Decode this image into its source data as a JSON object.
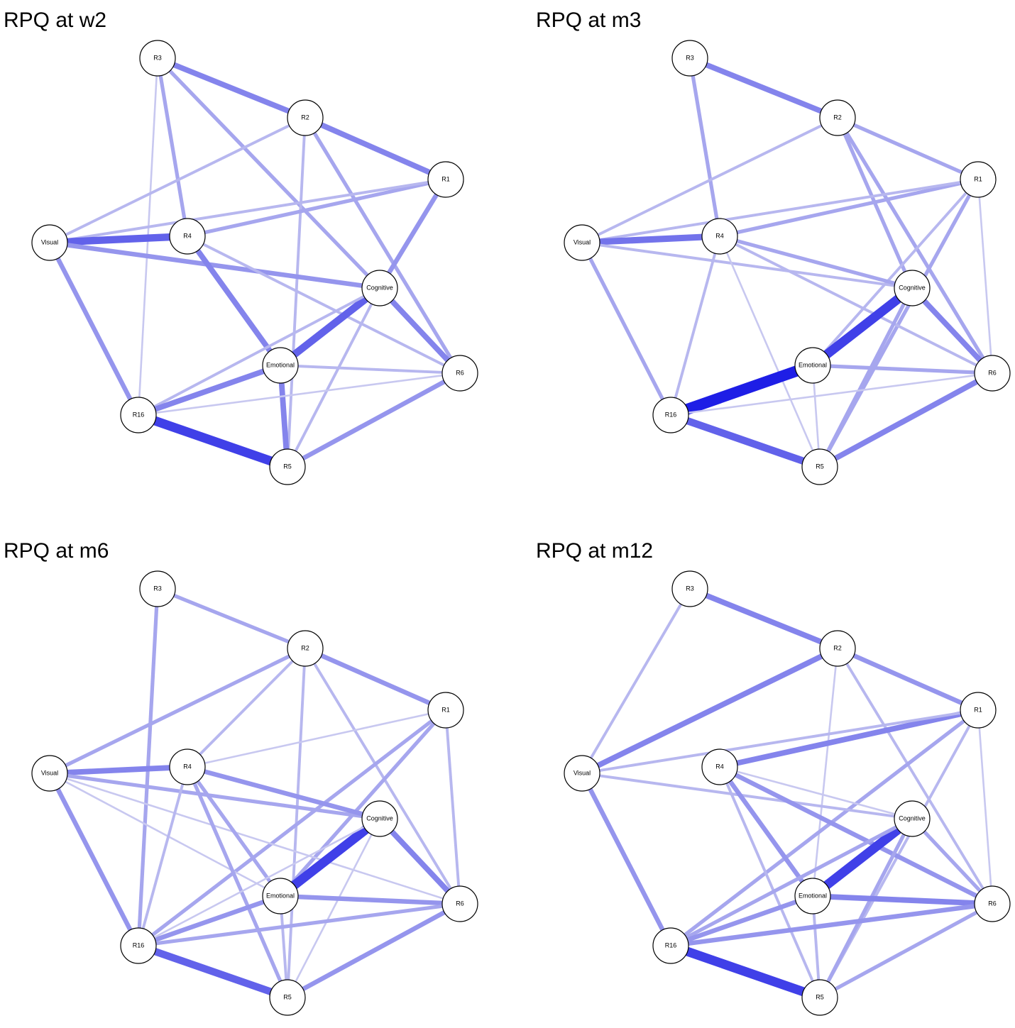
{
  "panels": [
    {
      "title": "RPQ at w2",
      "nodes": [
        "R3",
        "R2",
        "R1",
        "Visual",
        "R4",
        "Cognitive",
        "Emotional",
        "R6",
        "R16",
        "R5"
      ]
    },
    {
      "title": "RPQ at m3",
      "nodes": [
        "R3",
        "R2",
        "R1",
        "Visual",
        "R4",
        "Cognitive",
        "Emotional",
        "R6",
        "R16",
        "R5"
      ]
    },
    {
      "title": "RPQ at m6",
      "nodes": [
        "R3",
        "R2",
        "R1",
        "Visual",
        "R4",
        "Cognitive",
        "Emotional",
        "R6",
        "R16",
        "R5"
      ]
    },
    {
      "title": "RPQ at m12",
      "nodes": [
        "R3",
        "R2",
        "R1",
        "Visual",
        "R4",
        "Cognitive",
        "Emotional",
        "R6",
        "R16",
        "R5"
      ]
    }
  ]
}
